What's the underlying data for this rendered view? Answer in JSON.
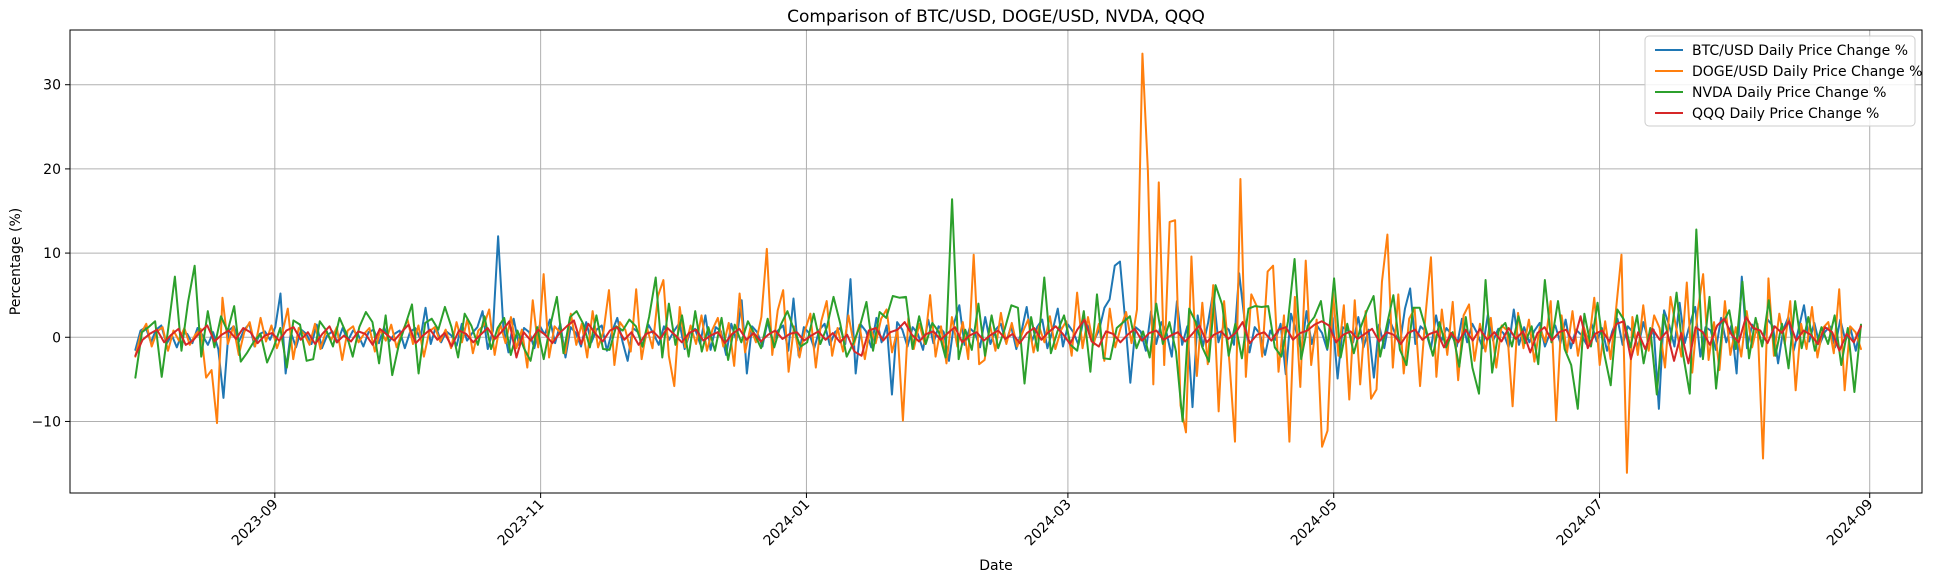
{
  "chart_data": {
    "type": "line",
    "title": "Comparison of BTC/USD, DOGE/USD, NVDA, QQQ",
    "xlabel": "Date",
    "ylabel": "Percentage (%)",
    "x_start": "2023-07-31",
    "x_end": "2024-08-30",
    "xlim": [
      "2023-07-16",
      "2024-09-13"
    ],
    "ylim": [
      -18.5,
      36.5
    ],
    "x_ticks": [
      "2023-09",
      "2023-11",
      "2024-01",
      "2024-03",
      "2024-05",
      "2024-07",
      "2024-09"
    ],
    "y_ticks": [
      -10,
      0,
      10,
      20,
      30
    ],
    "grid": true,
    "legend_position": "top-right",
    "series": [
      {
        "name": "BTC/USD Daily Price Change %",
        "color": "#1f77b4",
        "values": [
          -1.5,
          0.8,
          1.2,
          -0.6,
          0.9,
          1.4,
          -0.8,
          0.3,
          -1.2,
          0.5,
          0.4,
          -0.7,
          1.1,
          0.2,
          -0.9,
          0.6,
          -1.4,
          -7.2,
          0.8,
          1.3,
          -0.5,
          0.9,
          1.6,
          -1.1,
          0.4,
          0.7,
          -0.3,
          1.2,
          5.2,
          -4.3,
          0.6,
          -1.2,
          0.9,
          0.4,
          -0.8,
          1.5,
          -1.3,
          0.2,
          0.7,
          -0.6,
          1.1,
          -0.4,
          0.8,
          0.3,
          -1.1,
          0.6,
          0.9,
          -0.7,
          1.2,
          -0.5,
          0.4,
          0.8,
          -1.3,
          0.6,
          1.1,
          -0.2,
          3.5,
          -0.8,
          1.3,
          -0.6,
          0.7,
          0.2,
          -1.0,
          1.6,
          -0.4,
          0.5,
          1.2,
          3.1,
          -1.4,
          0.8,
          12.0,
          1.3,
          -1.8,
          2.2,
          -0.9,
          1.1,
          0.6,
          -1.3,
          1.4,
          0.3,
          2.1,
          -0.7,
          1.6,
          -2.4,
          1.2,
          0.5,
          -1.1,
          1.8,
          -0.6,
          0.9,
          1.4,
          -1.6,
          0.7,
          2.3,
          -0.5,
          -2.8,
          1.1,
          0.6,
          -1.2,
          1.5,
          0.4,
          -0.9,
          1.3,
          -0.3,
          0.8,
          1.7,
          -1.4,
          0.5,
          1.0,
          -0.8,
          2.6,
          -1.5,
          1.2,
          0.7,
          -2.1,
          1.6,
          -0.4,
          4.4,
          -4.3,
          1.3,
          0.6,
          -1.1,
          1.9,
          -0.7,
          0.8,
          1.4,
          -1.6,
          4.6,
          -2.2,
          1.2,
          0.5,
          -1.3,
          0.9,
          1.6,
          -0.9,
          0.6,
          1.1,
          -0.8,
          6.9,
          -4.3,
          1.5,
          0.7,
          -1.2,
          2.3,
          -0.6,
          1.4,
          -6.8,
          1.8,
          0.9,
          -1.1,
          1.2,
          0.4,
          -1.5,
          2.1,
          -0.7,
          1.3,
          0.6,
          -2.8,
          1.7,
          3.8,
          -0.9,
          1.1,
          0.5,
          -1.2,
          2.4,
          -0.8,
          0.9,
          1.6,
          -0.6,
          1.3,
          -1.4,
          0.7,
          3.6,
          -0.5,
          1.2,
          2.1,
          -1.3,
          0.8,
          3.4,
          -1.1,
          1.5,
          0.6,
          -0.9,
          2.2,
          1.1,
          -0.4,
          0.9,
          3.5,
          4.5,
          8.5,
          9.0,
          2.1,
          -5.4,
          1.2,
          0.7,
          -1.6,
          3.1,
          -0.8,
          1.8,
          0.5,
          -2.3,
          4.3,
          -0.9,
          1.3,
          -8.3,
          2.6,
          -1.1,
          1.7,
          5.4,
          -0.6,
          1.4,
          0.9,
          -0.9,
          7.6,
          2.3,
          -1.8,
          1.2,
          0.4,
          -2.1,
          0.8,
          -0.3,
          1.6,
          -4.4,
          2.8,
          0.7,
          -1.6,
          3.1,
          -0.8,
          1.4,
          0.5,
          -1.5,
          2.3,
          -4.9,
          1.2,
          0.8,
          -0.6,
          2.4,
          -1.2,
          0.9,
          -4.8,
          1.5,
          -1.3,
          2.1,
          0.6,
          -0.9,
          3.4,
          5.8,
          -0.8,
          1.3,
          0.7,
          -1.4,
          2.6,
          -0.5,
          1.1,
          0.3,
          -1.1,
          2.2,
          -0.6,
          1.6,
          0.4,
          -1.3,
          2.7,
          -0.4,
          1.0,
          0.5,
          -1.2,
          3.3,
          -0.9,
          1.2,
          -0.6,
          0.8,
          1.7,
          -1.1,
          0.5,
          1.4,
          -0.7,
          2.1,
          -1.3,
          0.9,
          0.3,
          -0.8,
          1.6,
          -0.5,
          1.1,
          -1.6,
          0.7,
          2.2,
          -0.9,
          1.3,
          0.6,
          -1.2,
          1.8,
          -0.4,
          0.9,
          -8.5,
          3.2,
          1.4,
          -1.1,
          4.1,
          -0.7,
          1.6,
          3.6,
          -2.3,
          1.2,
          0.8,
          -1.5,
          2.3,
          -0.6,
          1.4,
          -4.3,
          7.2,
          -1.3,
          1.5,
          0.6,
          -0.8,
          2.1,
          1.3,
          -3.1,
          0.9,
          2.4,
          -1.6,
          1.1,
          3.8,
          -0.5,
          1.7,
          -0.9,
          0.6,
          1.3,
          -1.2,
          2.1,
          -0.4,
          1.0,
          -1.6,
          1.4
        ]
      },
      {
        "name": "DOGE/USD Daily Price Change %",
        "color": "#ff7f0e",
        "values": [
          -2.3,
          0.4,
          1.6,
          -1.1,
          0.7,
          1.2,
          -1.6,
          0.8,
          -0.4,
          1.1,
          -0.9,
          0.3,
          1.0,
          -4.8,
          -3.9,
          -10.2,
          4.7,
          -0.8,
          1.3,
          -2.1,
          0.6,
          1.8,
          -1.1,
          2.3,
          -0.5,
          1.4,
          -1.3,
          0.5,
          3.4,
          -2.6,
          1.1,
          0.4,
          -0.9,
          1.6,
          -1.4,
          0.7,
          -0.3,
          1.2,
          -2.7,
          0.8,
          1.3,
          -0.6,
          0.4,
          1.1,
          -1.7,
          0.9,
          -0.4,
          1.5,
          -1.2,
          0.6,
          2.1,
          -0.8,
          1.4,
          -2.3,
          0.7,
          1.2,
          -0.5,
          0.9,
          -1.3,
          1.8,
          -0.6,
          2.2,
          -1.9,
          0.8,
          1.4,
          3.3,
          -2.1,
          1.6,
          -0.7,
          2.4,
          -1.3,
          0.9,
          -3.6,
          4.4,
          -1.2,
          7.5,
          -2.4,
          1.3,
          0.6,
          -1.9,
          2.8,
          -0.9,
          1.6,
          -2.4,
          3.1,
          -1.2,
          0.7,
          5.6,
          -3.3,
          1.8,
          0.9,
          -1.7,
          5.7,
          -2.6,
          1.1,
          -1.3,
          4.9,
          6.8,
          -2.2,
          -5.8,
          3.6,
          -1.2,
          1.4,
          -0.8,
          2.6,
          -1.6,
          0.9,
          2.3,
          -1.1,
          1.7,
          -3.4,
          5.2,
          -1.8,
          1.2,
          -0.6,
          2.4,
          10.5,
          -2.1,
          3.2,
          5.6,
          -4.1,
          1.3,
          -2.4,
          0.8,
          2.8,
          -3.6,
          1.9,
          4.3,
          -2.2,
          1.1,
          -1.7,
          2.6,
          -0.9,
          1.5,
          -2.6,
          1.2,
          -0.7,
          2.2,
          3.3,
          -1.8,
          0.9,
          -9.9,
          2.3,
          -1.4,
          1.6,
          -0.8,
          5.0,
          -2.3,
          1.3,
          -3.1,
          2.4,
          -1.1,
          1.8,
          -2.6,
          9.8,
          -3.2,
          -2.7,
          1.4,
          -1.6,
          2.9,
          -0.8,
          1.7,
          -1.1,
          0.6,
          2.1,
          -1.8,
          1.3,
          -0.6,
          2.5,
          -1.4,
          0.8,
          1.9,
          -2.2,
          5.3,
          -1.3,
          2.4,
          -0.9,
          1.6,
          -2.8,
          3.4,
          -1.2,
          1.1,
          3.0,
          -0.7,
          3.3,
          33.7,
          19.8,
          -5.6,
          18.4,
          -3.3,
          13.7,
          13.9,
          -8.1,
          -11.3,
          9.6,
          -4.6,
          4.1,
          -3.2,
          6.2,
          -8.8,
          4.3,
          -3.1,
          -12.4,
          18.8,
          -4.7,
          5.1,
          3.7,
          -2.3,
          7.8,
          8.5,
          -4.1,
          2.6,
          -12.4,
          4.8,
          -5.9,
          9.1,
          -3.3,
          2.1,
          -13.0,
          -11.1,
          5.3,
          -2.2,
          3.8,
          -7.4,
          4.4,
          -5.6,
          3.1,
          -7.3,
          -6.2,
          6.6,
          12.2,
          -3.6,
          5.1,
          -4.3,
          2.2,
          3.4,
          -5.8,
          2.6,
          9.5,
          -4.7,
          3.3,
          -2.1,
          4.2,
          -5.1,
          2.6,
          3.9,
          -2.8,
          1.6,
          -1.7,
          2.3,
          -3.6,
          1.4,
          0.8,
          -8.2,
          2.9,
          -1.3,
          2.1,
          -2.9,
          1.2,
          -0.6,
          4.3,
          -9.9,
          2.6,
          -1.8,
          3.1,
          -2.2,
          1.4,
          -0.8,
          4.7,
          -3.3,
          1.9,
          -2.6,
          3.3,
          9.8,
          -16.1,
          2.4,
          -2.1,
          3.8,
          -1.6,
          2.6,
          1.1,
          -3.6,
          4.8,
          1.3,
          -2.3,
          6.5,
          -4.2,
          3.1,
          7.5,
          -2.7,
          1.8,
          -3.9,
          4.3,
          -2.1,
          1.2,
          -2.3,
          3.1,
          -1.2,
          1.6,
          -14.4,
          7.0,
          -2.2,
          2.8,
          -0.8,
          4.3,
          -6.3,
          1.6,
          -1.4,
          3.6,
          -2.4,
          1.1,
          1.8,
          -1.9,
          5.7,
          -6.3,
          1.3,
          0.6,
          -1.4
        ]
      },
      {
        "name": "NVDA Daily Price Change %",
        "color": "#2ca02c",
        "values": [
          -4.8,
          0.6,
          1.2,
          1.9,
          -4.7,
          1.1,
          7.2,
          -1.6,
          4.2,
          8.5,
          -2.3,
          3.1,
          -1.2,
          2.5,
          0.7,
          3.7,
          -2.9,
          -1.8,
          -0.5,
          0.4,
          -3.0,
          -1.2,
          1.1,
          -3.6,
          2.0,
          1.5,
          -2.8,
          -2.6,
          1.9,
          0.8,
          -1.1,
          2.3,
          0.5,
          -2.3,
          1.2,
          3.0,
          1.8,
          -3.1,
          2.6,
          -4.5,
          -0.9,
          1.5,
          3.9,
          -4.3,
          1.7,
          2.2,
          0.9,
          3.6,
          1.2,
          -2.4,
          2.8,
          1.4,
          -0.9,
          2.5,
          -1.4,
          1.1,
          2.3,
          -2.1,
          0.8,
          -1.3,
          -2.8,
          1.2,
          -2.6,
          1.4,
          4.8,
          -1.9,
          2.4,
          3.1,
          1.6,
          -1.2,
          2.6,
          -1.4,
          -1.5,
          1.3,
          0.8,
          2.1,
          1.3,
          -1.1,
          2.4,
          7.1,
          -2.4,
          4.0,
          -0.9,
          2.6,
          -2.3,
          3.1,
          -1.7,
          1.2,
          -1.6,
          2.3,
          -2.7,
          1.5,
          -0.6,
          1.9,
          0.4,
          -1.3,
          2.2,
          -1.2,
          1.5,
          3.1,
          0.9,
          -1.1,
          -0.6,
          2.8,
          -0.8,
          1.2,
          4.8,
          1.7,
          -2.3,
          -0.7,
          1.3,
          4.2,
          -1.6,
          3.0,
          2.3,
          4.9,
          4.7,
          4.8,
          -1.4,
          2.5,
          -0.8,
          1.7,
          0.6,
          -2.4,
          16.4,
          -2.6,
          0.9,
          -1.5,
          4.0,
          -2.2,
          2.6,
          -1.3,
          1.0,
          3.8,
          3.5,
          -5.5,
          2.4,
          -1.6,
          7.1,
          -1.9,
          0.7,
          2.6,
          -0.9,
          -1.6,
          3.1,
          -4.1,
          5.1,
          -2.5,
          -2.6,
          1.1,
          1.8,
          2.5,
          -1.3,
          0.7,
          -2.4,
          4.0,
          -0.8,
          1.8,
          -1.7,
          -10.0,
          3.4,
          1.8,
          -1.2,
          -2.9,
          6.2,
          3.9,
          -2.2,
          1.6,
          -2.5,
          3.4,
          3.7,
          3.6,
          3.7,
          -1.2,
          -2.3,
          1.9,
          9.3,
          -2.6,
          1.4,
          2.4,
          4.3,
          -1.3,
          7.0,
          -2.4,
          1.6,
          -1.9,
          1.1,
          3.2,
          4.9,
          -2.3,
          1.4,
          5.0,
          -1.5,
          -3.3,
          3.5,
          3.5,
          0.8,
          -2.2,
          1.8,
          -1.2,
          0.6,
          -3.5,
          2.4,
          -3.6,
          -6.7,
          6.8,
          -4.2,
          0.9,
          1.7,
          -1.1,
          2.5,
          -0.7,
          1.3,
          -3.2,
          6.8,
          -0.6,
          4.3,
          -1.4,
          -3.3,
          -8.5,
          2.8,
          -1.1,
          4.1,
          -1.9,
          -5.7,
          3.3,
          2.1,
          -1.2,
          2.6,
          -3.1,
          1.1,
          -6.8,
          2.7,
          -0.9,
          5.3,
          -2.1,
          -6.7,
          12.8,
          -2.6,
          4.8,
          -6.1,
          1.6,
          3.2,
          -1.4,
          6.6,
          -2.5,
          2.3,
          -1.1,
          4.4,
          -2.2,
          1.6,
          -3.7,
          4.3,
          -1.3,
          2.4,
          -1.6,
          1.2,
          -0.8,
          2.6,
          -3.3,
          1.1,
          -6.5,
          1.5
        ]
      },
      {
        "name": "QQQ Daily Price Change %",
        "color": "#d62728",
        "values": [
          -2.2,
          -0.3,
          0.4,
          0.9,
          -0.6,
          0.3,
          1.0,
          -0.9,
          -0.4,
          0.6,
          1.4,
          -0.5,
          0.3,
          0.8,
          -0.2,
          1.1,
          0.6,
          -0.7,
          0.2,
          0.5,
          -0.4,
          0.8,
          1.2,
          -0.3,
          0.6,
          -0.8,
          0.4,
          1.3,
          -0.6,
          0.2,
          -0.5,
          0.7,
          0.4,
          -0.9,
          1.0,
          0.3,
          -0.4,
          0.6,
          1.5,
          -0.7,
          0.2,
          0.9,
          -0.3,
          0.5,
          -1.1,
          0.8,
          0.4,
          -0.6,
          0.3,
          1.1,
          -0.2,
          0.7,
          1.9,
          -2.4,
          0.6,
          -0.4,
          0.9,
          0.3,
          -0.7,
          0.5,
          1.3,
          2.0,
          -0.8,
          1.6,
          0.4,
          -0.5,
          0.8,
          1.2,
          -0.3,
          0.6,
          -0.9,
          0.4,
          0.7,
          -0.2,
          1.1,
          0.3,
          -0.6,
          0.5,
          0.9,
          -0.4,
          0.2,
          0.6,
          -0.7,
          0.4,
          1.0,
          -0.3,
          0.5,
          -0.5,
          0.3,
          0.8,
          -0.2,
          0.4,
          0.6,
          -0.4,
          0.2,
          0.7,
          -0.3,
          0.5,
          -0.6,
          0.3,
          -1.7,
          -2.2,
          0.8,
          1.1,
          -0.4,
          0.6,
          0.9,
          1.8,
          0.3,
          -0.5,
          0.4,
          0.7,
          -0.3,
          0.5,
          1.2,
          -0.6,
          0.2,
          0.6,
          -0.4,
          0.3,
          0.8,
          -0.2,
          0.4,
          -0.7,
          0.5,
          1.1,
          -0.3,
          0.6,
          1.3,
          0.4,
          -0.8,
          0.9,
          2.1,
          -0.5,
          -1.1,
          0.7,
          0.4,
          -0.6,
          0.3,
          1.0,
          -0.4,
          0.5,
          0.8,
          -0.3,
          0.2,
          0.6,
          -0.5,
          0.4,
          1.4,
          -0.6,
          0.3,
          0.7,
          -0.2,
          0.5,
          1.8,
          -0.7,
          0.3,
          0.6,
          -0.4,
          0.9,
          1.2,
          -0.3,
          0.5,
          0.8,
          1.5,
          1.9,
          1.4,
          -0.6,
          0.3,
          0.7,
          -0.2,
          0.4,
          1.0,
          -0.5,
          0.6,
          0.3,
          -0.8,
          0.5,
          0.9,
          -0.3,
          0.4,
          0.7,
          -1.2,
          0.5,
          -0.6,
          0.9,
          -0.4,
          1.0,
          -0.3,
          0.6,
          -0.5,
          1.1,
          -0.2,
          0.7,
          -1.8,
          0.5,
          1.2,
          -0.4,
          0.6,
          0.9,
          -0.7,
          2.5,
          -1.3,
          0.4,
          0.8,
          -0.5,
          1.6,
          1.9,
          -2.6,
          0.6,
          -1.4,
          1.0,
          -0.3,
          0.7,
          -2.8,
          0.5,
          -3.1,
          1.2,
          0.6,
          -0.9,
          1.4,
          2.2,
          0.3,
          -0.6,
          2.4,
          1.1,
          0.8,
          -0.7,
          1.3,
          0.5,
          1.9,
          -0.4,
          0.8,
          0.3,
          -0.8,
          1.2,
          0.6,
          -1.6,
          0.4,
          -0.6,
          1.3
        ]
      }
    ]
  }
}
